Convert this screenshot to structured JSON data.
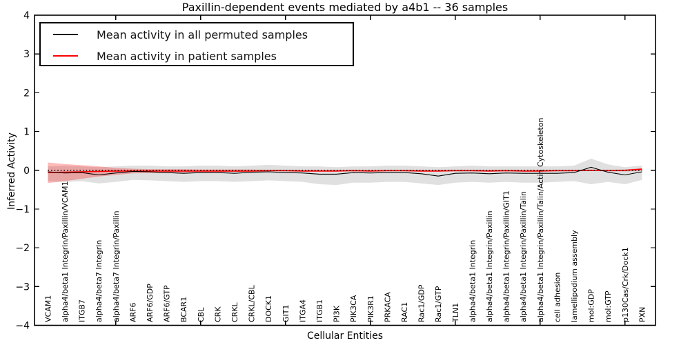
{
  "title": "Paxillin-dependent events mediated by a4b1 -- 36 samples",
  "legend": [
    {
      "label": "Mean activity in all permuted samples",
      "color": "#000000"
    },
    {
      "label": "Mean activity in patient samples",
      "color": "#ff0000"
    }
  ],
  "axes": {
    "xlabel": "Cellular Entities",
    "ylabel": "Inferred Activity",
    "ytick_labels": [
      "4",
      "3",
      "2",
      "1",
      "0",
      "−1",
      "−2",
      "−3",
      "−4"
    ]
  },
  "chart_data": {
    "type": "line",
    "title": "Paxillin-dependent events mediated by a4b1 -- 36 samples",
    "xlabel": "Cellular Entities",
    "ylabel": "Inferred Activity",
    "ylim": [
      -4,
      4
    ],
    "yticks": [
      4,
      3,
      2,
      1,
      0,
      -1,
      -2,
      -3,
      -4
    ],
    "xtick_positions": [
      5,
      10,
      15,
      20,
      25,
      30,
      35
    ],
    "grid": false,
    "legend_position": "upper left",
    "categories": [
      "VCAM1",
      "alpha4/beta1 Integrin/Paxillin/VCAM1",
      "ITGB7",
      "alpha4/beta7 Integrin",
      "alpha4/beta7 Integrin/Paxillin",
      "ARF6",
      "ARF6/GDP",
      "ARF6/GTP",
      "BCAR1",
      "CBL",
      "CRK",
      "CRKL",
      "CRKL/CBL",
      "DOCK1",
      "GIT1",
      "ITGA4",
      "ITGB1",
      "PI3K",
      "PIK3CA",
      "PIK3R1",
      "PRKACA",
      "RAC1",
      "Rac1/GDP",
      "Rac1/GTP",
      "TLN1",
      "alpha4/beta1 Integrin",
      "alpha4/beta1 Integrin/Paxillin",
      "alpha4/beta1 Integrin/Paxillin/GIT1",
      "alpha4/beta1 Integrin/Paxillin/Talin",
      "alpha4/beta1 Integrin/Paxillin/Talin/Actin Cytoskeleton",
      "cell adhesion",
      "lamellipodium assembly",
      "mol:GDP",
      "mol:GTP",
      "p130Cas/Crk/Dock1",
      "PXN"
    ],
    "reference_line": {
      "y": 0,
      "style": "dotted",
      "color": "#000000"
    },
    "series": [
      {
        "name": "Mean activity in all permuted samples",
        "color": "#000000",
        "band_color": "#000000",
        "band_opacity": 0.12,
        "values": [
          -0.04,
          -0.07,
          -0.06,
          -0.12,
          -0.07,
          -0.03,
          -0.04,
          -0.06,
          -0.08,
          -0.06,
          -0.06,
          -0.08,
          -0.05,
          -0.04,
          -0.06,
          -0.07,
          -0.1,
          -0.1,
          -0.06,
          -0.07,
          -0.06,
          -0.06,
          -0.09,
          -0.15,
          -0.08,
          -0.07,
          -0.09,
          -0.07,
          -0.08,
          -0.08,
          -0.08,
          -0.06,
          0.08,
          -0.05,
          -0.12,
          -0.04
        ],
        "band_upper": [
          0.1,
          0.12,
          0.1,
          0.08,
          0.1,
          0.12,
          0.12,
          0.1,
          0.1,
          0.12,
          0.12,
          0.1,
          0.12,
          0.14,
          0.12,
          0.1,
          0.1,
          0.08,
          0.1,
          0.1,
          0.12,
          0.12,
          0.1,
          0.08,
          0.1,
          0.12,
          0.1,
          0.1,
          0.1,
          0.1,
          0.1,
          0.12,
          0.3,
          0.15,
          0.08,
          0.12
        ],
        "band_lower": [
          -0.28,
          -0.3,
          -0.28,
          -0.34,
          -0.3,
          -0.25,
          -0.26,
          -0.28,
          -0.3,
          -0.28,
          -0.28,
          -0.3,
          -0.28,
          -0.26,
          -0.28,
          -0.3,
          -0.36,
          -0.38,
          -0.32,
          -0.32,
          -0.3,
          -0.3,
          -0.34,
          -0.38,
          -0.32,
          -0.3,
          -0.32,
          -0.3,
          -0.32,
          -0.32,
          -0.3,
          -0.28,
          -0.36,
          -0.3,
          -0.36,
          -0.25
        ]
      },
      {
        "name": "Mean activity in patient samples",
        "color": "#ff0000",
        "band_color": "#ff0000",
        "band_opacity": 0.27,
        "values": [
          -0.06,
          -0.05,
          -0.04,
          -0.03,
          -0.02,
          -0.02,
          -0.02,
          -0.02,
          -0.02,
          -0.02,
          -0.02,
          -0.02,
          -0.02,
          -0.01,
          -0.01,
          -0.02,
          -0.02,
          -0.02,
          -0.01,
          -0.02,
          -0.01,
          -0.01,
          -0.02,
          -0.02,
          -0.01,
          -0.01,
          -0.02,
          -0.01,
          -0.02,
          -0.02,
          -0.01,
          -0.01,
          0.0,
          -0.01,
          0.0,
          0.03
        ],
        "band_upper": [
          0.2,
          0.16,
          0.13,
          0.1,
          0.06,
          0.04,
          0.03,
          0.03,
          0.03,
          0.02,
          0.02,
          0.02,
          0.02,
          0.01,
          0.01,
          0.01,
          0.01,
          0.01,
          0.01,
          0.01,
          0.01,
          0.01,
          0.01,
          0.01,
          0.01,
          0.01,
          0.01,
          0.01,
          0.01,
          0.01,
          0.01,
          0.01,
          0.02,
          0.01,
          0.02,
          0.05
        ],
        "band_lower": [
          -0.33,
          -0.28,
          -0.22,
          -0.16,
          -0.12,
          -0.08,
          -0.07,
          -0.07,
          -0.06,
          -0.05,
          -0.05,
          -0.04,
          -0.04,
          -0.03,
          -0.03,
          -0.03,
          -0.03,
          -0.03,
          -0.03,
          -0.03,
          -0.03,
          -0.03,
          -0.03,
          -0.03,
          -0.03,
          -0.03,
          -0.03,
          -0.03,
          -0.03,
          -0.03,
          -0.03,
          -0.03,
          -0.02,
          -0.03,
          -0.03,
          -0.02
        ]
      }
    ]
  }
}
